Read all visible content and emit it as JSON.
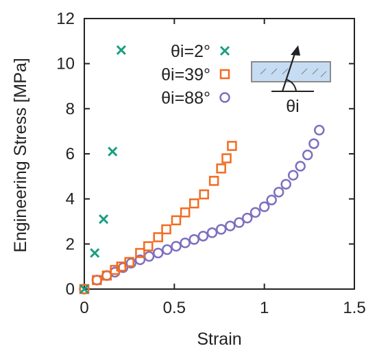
{
  "chart_data": {
    "type": "scatter",
    "xlabel": "Strain",
    "ylabel": "Engineering Stress [MPa]",
    "xlim": [
      0,
      1.5
    ],
    "ylim": [
      0,
      12
    ],
    "xticks": [
      {
        "value": 0,
        "label": "0"
      },
      {
        "value": 0.5,
        "label": "0.5"
      },
      {
        "value": 1,
        "label": "1"
      },
      {
        "value": 1.5,
        "label": "1.5"
      }
    ],
    "yticks": [
      {
        "value": 0,
        "label": "0"
      },
      {
        "value": 2,
        "label": "2"
      },
      {
        "value": 4,
        "label": "4"
      },
      {
        "value": 6,
        "label": "6"
      },
      {
        "value": 8,
        "label": "8"
      },
      {
        "value": 10,
        "label": "10"
      },
      {
        "value": 12,
        "label": "12"
      }
    ],
    "grid": false,
    "legend_position": "top-right",
    "inset_label": "θi",
    "series": [
      {
        "name": "θi=2°",
        "marker": "x",
        "color": "#1a9f80",
        "points": [
          [
            0,
            0
          ],
          [
            0.058,
            1.6
          ],
          [
            0.107,
            3.1
          ],
          [
            0.157,
            6.1
          ],
          [
            0.205,
            10.6
          ]
        ]
      },
      {
        "name": "θi=39°",
        "marker": "square",
        "color": "#f26b21",
        "points": [
          [
            0,
            0
          ],
          [
            0.07,
            0.4
          ],
          [
            0.125,
            0.6
          ],
          [
            0.17,
            0.85
          ],
          [
            0.205,
            1.0
          ],
          [
            0.25,
            1.2
          ],
          [
            0.31,
            1.6
          ],
          [
            0.355,
            1.9
          ],
          [
            0.41,
            2.3
          ],
          [
            0.455,
            2.65
          ],
          [
            0.51,
            3.05
          ],
          [
            0.56,
            3.4
          ],
          [
            0.61,
            3.8
          ],
          [
            0.665,
            4.2
          ],
          [
            0.72,
            4.8
          ],
          [
            0.76,
            5.35
          ],
          [
            0.79,
            5.8
          ],
          [
            0.82,
            6.35
          ]
        ]
      },
      {
        "name": "θi=88°",
        "marker": "circle",
        "color": "#7e6fbf",
        "points": [
          [
            0,
            0
          ],
          [
            0.07,
            0.4
          ],
          [
            0.125,
            0.6
          ],
          [
            0.17,
            0.75
          ],
          [
            0.215,
            0.95
          ],
          [
            0.26,
            1.15
          ],
          [
            0.31,
            1.3
          ],
          [
            0.36,
            1.45
          ],
          [
            0.41,
            1.6
          ],
          [
            0.46,
            1.75
          ],
          [
            0.51,
            1.9
          ],
          [
            0.56,
            2.05
          ],
          [
            0.61,
            2.2
          ],
          [
            0.66,
            2.35
          ],
          [
            0.71,
            2.5
          ],
          [
            0.76,
            2.65
          ],
          [
            0.81,
            2.8
          ],
          [
            0.86,
            2.95
          ],
          [
            0.905,
            3.15
          ],
          [
            0.95,
            3.4
          ],
          [
            1.0,
            3.65
          ],
          [
            1.04,
            3.95
          ],
          [
            1.08,
            4.3
          ],
          [
            1.12,
            4.65
          ],
          [
            1.16,
            5.05
          ],
          [
            1.2,
            5.45
          ],
          [
            1.24,
            5.95
          ],
          [
            1.275,
            6.45
          ],
          [
            1.305,
            7.05
          ]
        ]
      }
    ]
  },
  "colors": {
    "axis": "#222222",
    "inset_fill": "#c5dcf3",
    "inset_stroke": "#8a8a8a"
  }
}
